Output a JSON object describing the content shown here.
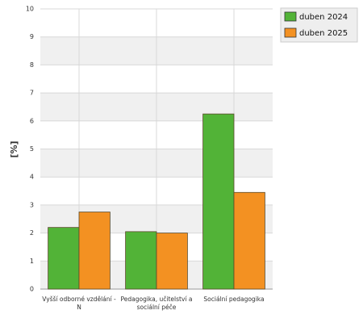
{
  "chart_data": {
    "type": "bar",
    "y_label": "[%]",
    "categories": [
      "Vyšší odborné vzdělání - N",
      "Pedagogika, učitelství a sociální péče",
      "Sociální pedagogika"
    ],
    "series": [
      {
        "name": "duben 2024",
        "color": "#52b337",
        "values": [
          2.2,
          2.05,
          6.25
        ]
      },
      {
        "name": "duben 2025",
        "color": "#f39122",
        "values": [
          2.75,
          2.0,
          3.45
        ]
      }
    ],
    "ylim": [
      0,
      10
    ],
    "yticks": [
      0,
      1,
      2,
      3,
      4,
      5,
      6,
      7,
      8,
      9,
      10
    ],
    "grid": true,
    "legend": "top-right"
  }
}
